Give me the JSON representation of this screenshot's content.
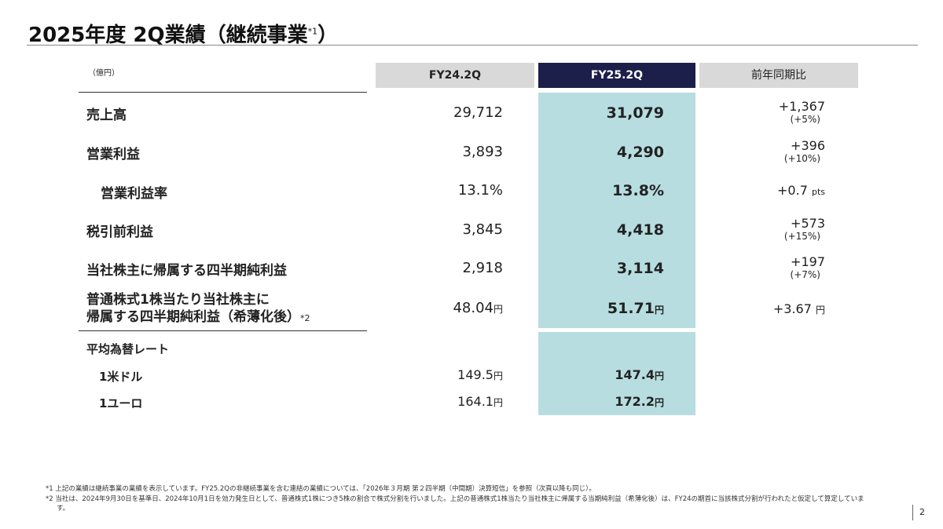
{
  "title": "2025年度 2Q業績（継続事業",
  "title_note": "*1",
  "title_close": "）",
  "unit": "（億円）",
  "headers": [
    "FY24.2Q",
    "FY25.2Q",
    "前年同期比"
  ],
  "rows": [
    {
      "label": "売上高",
      "fy24": "29,712",
      "fy25": "31,079",
      "diff": "+1,367",
      "pct": "(+5%)"
    },
    {
      "label": "営業利益",
      "fy24": "3,893",
      "fy25": "4,290",
      "diff": "+396",
      "pct": "(+10%)"
    },
    {
      "label": "営業利益率",
      "fy24": "13.1%",
      "fy25": "13.8%",
      "diff": "+0.7",
      "unit": "pts"
    },
    {
      "label": "税引前利益",
      "fy24": "3,845",
      "fy25": "4,418",
      "diff": "+573",
      "pct": "(+15%)"
    },
    {
      "label": "当社株主に帰属する四半期純利益",
      "fy24": "2,918",
      "fy25": "3,114",
      "diff": "+197",
      "pct": "(+7%)"
    },
    {
      "label1": "普通株式1株当たり当社株主に",
      "label2": "帰属する四半期純利益（希薄化後）",
      "note": "*2",
      "fy24": "48.04",
      "fy25": "51.71",
      "diff": "+3.67",
      "yen": "円"
    }
  ],
  "fx": {
    "label": "平均為替レート",
    "rows": [
      {
        "label": "1米ドル",
        "fy24": "149.5",
        "fy25": "147.4"
      },
      {
        "label": "1ユーロ",
        "fy24": "164.1",
        "fy25": "172.2"
      }
    ],
    "yen": "円"
  },
  "footnotes": [
    {
      "mark": "*1",
      "text": "上記の業績は継続事業の業績を表示しています。FY25.2Qの非継続事業を含む連結の業績については、「2026年３月期 第２四半期（中間期）決算短信」を参照（次頁以降も同じ）。"
    },
    {
      "mark": "*2",
      "text": "当社は、2024年9月30日を基準日、2024年10月1日を効力発生日として、普通株式1株につき5株の割合で株式分割を行いました。上記の普通株式1株当たり当社株主に帰属する当期純利益（希薄化後）は、FY24の期首に当該株式分割が行われたと仮定して算定しています。"
    }
  ],
  "page": "2"
}
